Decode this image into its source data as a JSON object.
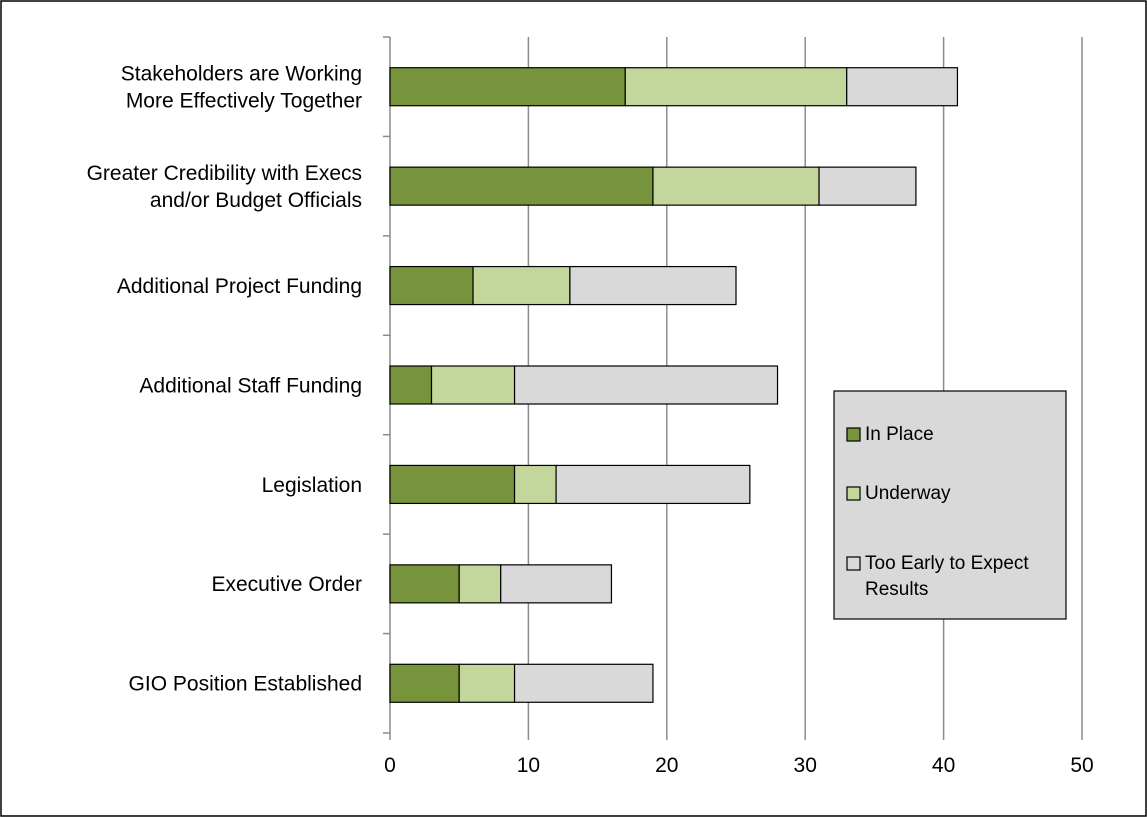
{
  "chart_data": {
    "type": "bar",
    "orientation": "horizontal",
    "stacked": true,
    "categories": [
      [
        "Stakeholders are Working",
        "More Effectively Together"
      ],
      [
        "Greater Credibility with Execs",
        "and/or Budget Officials"
      ],
      [
        "Additional Project Funding"
      ],
      [
        "Additional Staff Funding"
      ],
      [
        "Legislation"
      ],
      [
        "Executive Order"
      ],
      [
        "GIO Position Established"
      ]
    ],
    "series": [
      {
        "name": "In Place",
        "color": "#77933c",
        "values": [
          17,
          19,
          6,
          3,
          9,
          5,
          5
        ]
      },
      {
        "name": "Underway",
        "color": "#c3d69b",
        "values": [
          16,
          12,
          7,
          6,
          3,
          3,
          4
        ]
      },
      {
        "name": "Too Early to Expect Results",
        "color": "#d9d9d9",
        "values": [
          8,
          7,
          12,
          19,
          14,
          8,
          10
        ]
      }
    ],
    "legend": {
      "position": "right",
      "entries": [
        [
          "In Place"
        ],
        [
          "Underway"
        ],
        [
          "Too Early to Expect",
          "Results"
        ]
      ],
      "background": "#d9d9d9"
    },
    "x_ticks": [
      "0",
      "10",
      "20",
      "30",
      "40",
      "50"
    ],
    "xlim": [
      0,
      50
    ],
    "grid": true,
    "title": "",
    "xlabel": "",
    "ylabel": ""
  }
}
